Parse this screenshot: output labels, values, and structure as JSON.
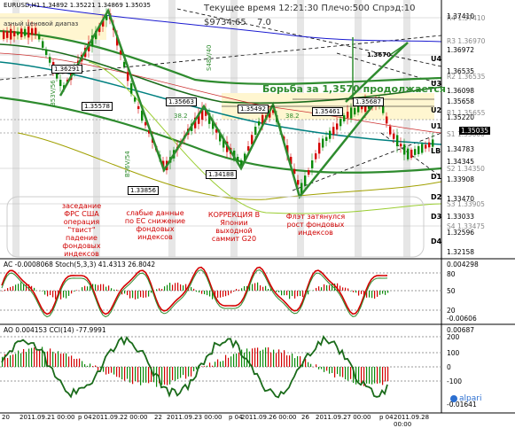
{
  "header": {
    "symbol": "EURUSD,H1",
    "ohlc": "1.34892 1.35221 1.34869 1.35035",
    "subtitle": "азный ценовой диапаз",
    "server_time": "Текущее время 12:21:30 Плечо:500 Спрэд:10",
    "balance": "$9734.65",
    "balance_extra": "7.0"
  },
  "price_axis": {
    "labels": [
      "1.37410",
      "1.36972",
      "1.36535",
      "1.36098",
      "1.35658",
      "1.35220",
      "1.35035",
      "1.34783",
      "1.34345",
      "1.33908",
      "1.33470",
      "1.33033",
      "1.32596",
      "1.32158"
    ],
    "current": "1.35035"
  },
  "levels": [
    {
      "name": "R4",
      "value": "1.37410"
    },
    {
      "name": "R3",
      "value": "1.36970"
    },
    {
      "name": "R2",
      "value": "1.36535"
    },
    {
      "name": "R1",
      "value": "1.35655"
    },
    {
      "name": "S1",
      "value": "1.35000"
    },
    {
      "name": "S2",
      "value": "1.34350"
    },
    {
      "name": "S3",
      "value": "1.33905"
    },
    {
      "name": "S4",
      "value": "1.33475"
    }
  ],
  "level_marks": [
    "U4",
    "U3",
    "U2",
    "U1",
    "LB",
    "D1",
    "D2",
    "D3",
    "D4"
  ],
  "price_boxes": [
    "1.36291",
    "1.35578",
    "1.35663",
    "1.35492",
    "1.35461",
    "1.35687",
    "1.33856",
    "1.34188",
    "1.3670"
  ],
  "chart_text": {
    "fight": "Борьба за 1,3570 продолжается",
    "num_382a": "38.2",
    "num_382b": "38.2",
    "v1": "B53V/56",
    "v2": "B56V/54",
    "v3": "S48V/40"
  },
  "annotations": [
    "заседание ФРС США операция \"твист\" падение фондовых индексов",
    "слабые данные по ЕС снижение фондовых индексов",
    "КОРРЕКЦИЯ В Японии выходной саммит G20",
    "Флэт затянулся рост фондовых индексов"
  ],
  "indicator1": {
    "label": "AC -0.0008068  Stoch(5,3,3) 41.4313 26.8042",
    "axis": [
      "0.004298",
      "80",
      "50",
      "20",
      "-0.00606"
    ]
  },
  "indicator2": {
    "label": "AO 0.004153  CCI(14) -77.9991",
    "axis": [
      "0.00687",
      "200",
      "100",
      "0",
      "-100",
      "-0.01641"
    ]
  },
  "time_axis": [
    "20",
    "2011.09.21 00:00",
    "р 04",
    "2011.09.22 00:00",
    "22",
    "2011.09.23 00:00",
    "р 04",
    "2011.09.26 00:00",
    "26",
    "2011.09.27 00:00",
    "р 04",
    "2011.09.28 00:00"
  ],
  "brand": "alpari",
  "colors": {
    "bull": "#0a8a0a",
    "bear": "#d40000",
    "trend": "#2e8b2e",
    "ma_blue": "#1a1ad0"
  }
}
